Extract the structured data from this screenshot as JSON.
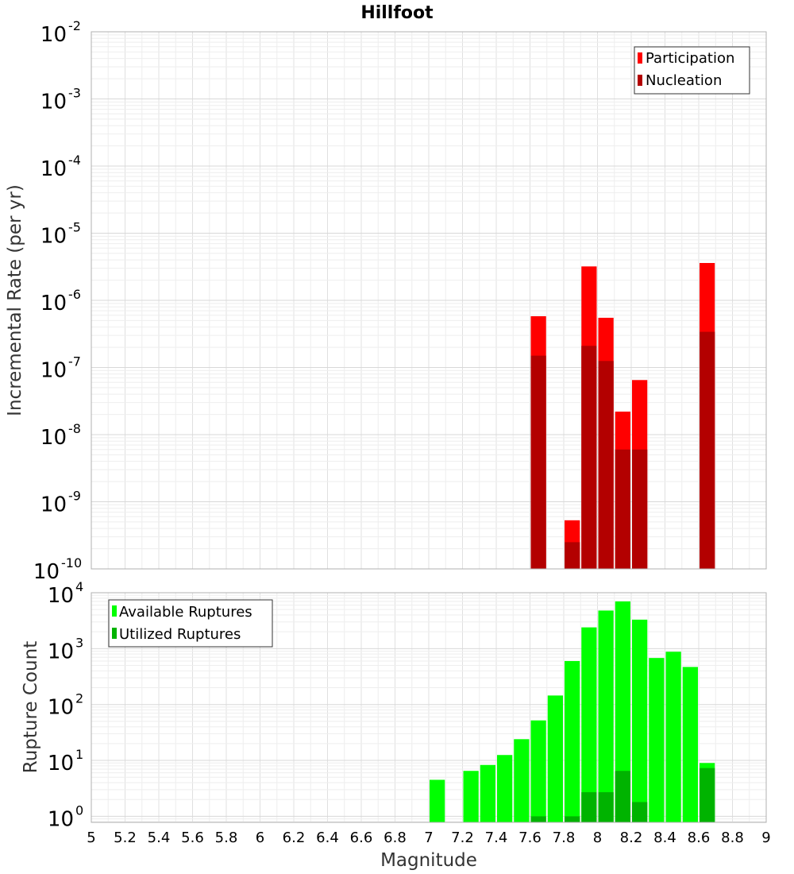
{
  "chart_data": [
    {
      "type": "bar",
      "title": "Hillfoot",
      "ylabel": "Incremental Rate (per yr)",
      "yscale": "log",
      "ylim": [
        1e-10,
        0.01
      ],
      "xlim": [
        5,
        9
      ],
      "grid": true,
      "legend_position": "top-right",
      "series": [
        {
          "name": "Participation",
          "color": "#ff0000",
          "x": [
            7.65,
            7.85,
            7.95,
            8.05,
            8.15,
            8.25,
            8.65
          ],
          "values": [
            5.8e-07,
            5.3e-10,
            3.2e-06,
            5.5e-07,
            2.2e-08,
            6.5e-08,
            3.6e-06
          ]
        },
        {
          "name": "Nucleation",
          "color": "#b30000",
          "x": [
            7.65,
            7.85,
            7.95,
            8.05,
            8.15,
            8.25,
            8.65
          ],
          "values": [
            1.5e-07,
            2.5e-10,
            2.1e-07,
            1.25e-07,
            6e-09,
            6e-09,
            3.4e-07
          ]
        }
      ]
    },
    {
      "type": "bar",
      "xlabel": "Magnitude",
      "ylabel": "Rupture Count",
      "yscale": "log",
      "ylim": [
        0.78,
        10000
      ],
      "xlim": [
        5,
        9
      ],
      "grid": true,
      "legend_position": "top-left",
      "xticks": [
        "5",
        "5.2",
        "5.4",
        "5.6",
        "5.8",
        "6",
        "6.2",
        "6.4",
        "6.6",
        "6.8",
        "7",
        "7.2",
        "7.4",
        "7.6",
        "7.8",
        "8",
        "8.2",
        "8.4",
        "8.6",
        "8.8",
        "9"
      ],
      "series": [
        {
          "name": "Available Ruptures",
          "color": "#00ff00",
          "x": [
            7.05,
            7.25,
            7.35,
            7.45,
            7.55,
            7.65,
            7.75,
            7.85,
            7.95,
            8.05,
            8.15,
            8.25,
            8.35,
            8.45,
            8.55,
            8.65
          ],
          "values": [
            4.5,
            6.5,
            8.3,
            12.5,
            24,
            52,
            145,
            600,
            2400,
            4800,
            7000,
            3300,
            680,
            880,
            470,
            9
          ]
        },
        {
          "name": "Utilized Ruptures",
          "color": "#00b300",
          "x": [
            7.65,
            7.85,
            7.95,
            8.05,
            8.15,
            8.25,
            8.65
          ],
          "values": [
            1,
            1,
            2.7,
            2.7,
            6.5,
            1.8,
            7.3
          ]
        }
      ]
    }
  ]
}
